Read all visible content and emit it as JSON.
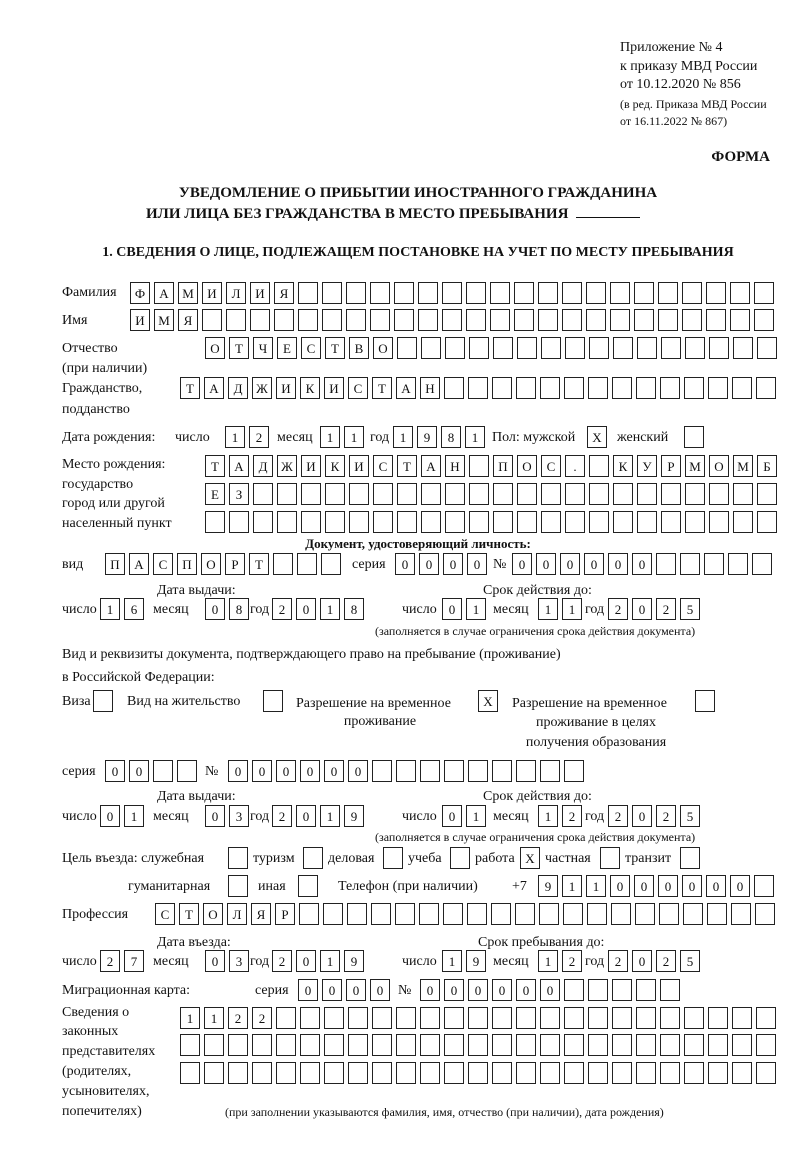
{
  "header": {
    "appendix": [
      "Приложение № 4",
      "к приказу МВД России",
      "от 10.12.2020 № 856"
    ],
    "revision": [
      "(в ред. Приказа МВД России",
      "от 16.11.2022 № 867)"
    ],
    "form_label": "ФОРМА",
    "title_line1": "УВЕДОМЛЕНИЕ О ПРИБЫТИИ ИНОСТРАННОГО ГРАЖДАНИНА",
    "title_line2": "ИЛИ ЛИЦА БЕЗ ГРАЖДАНСТВА В МЕСТО ПРЕБЫВАНИЯ",
    "section_title": "1. СВЕДЕНИЯ О ЛИЦЕ, ПОДЛЕЖАЩЕМ ПОСТАНОВКЕ НА УЧЕТ ПО МЕСТУ ПРЕБЫВАНИЯ"
  },
  "person": {
    "surname_label": "Фамилия",
    "surname": [
      "Ф",
      "А",
      "М",
      "И",
      "Л",
      "И",
      "Я",
      "",
      "",
      "",
      "",
      "",
      "",
      "",
      "",
      "",
      "",
      "",
      "",
      "",
      "",
      "",
      "",
      "",
      "",
      "",
      ""
    ],
    "name_label": "Имя",
    "name": [
      "И",
      "М",
      "Я",
      "",
      "",
      "",
      "",
      "",
      "",
      "",
      "",
      "",
      "",
      "",
      "",
      "",
      "",
      "",
      "",
      "",
      "",
      "",
      "",
      "",
      "",
      "",
      ""
    ],
    "patronymic_label": [
      "Отчество",
      "(при наличии)"
    ],
    "patronymic": [
      "О",
      "Т",
      "Ч",
      "Е",
      "С",
      "Т",
      "В",
      "О",
      "",
      "",
      "",
      "",
      "",
      "",
      "",
      "",
      "",
      "",
      "",
      "",
      "",
      "",
      "",
      ""
    ],
    "citizenship_label": [
      "Гражданство,",
      "подданство"
    ],
    "citizenship": [
      "Т",
      "А",
      "Д",
      "Ж",
      "И",
      "К",
      "И",
      "С",
      "Т",
      "А",
      "Н",
      "",
      "",
      "",
      "",
      "",
      "",
      "",
      "",
      "",
      "",
      "",
      "",
      "",
      ""
    ],
    "birth": {
      "label": "Дата рождения:",
      "day_label": "число",
      "day": [
        "1",
        "2"
      ],
      "month_label": "месяц",
      "month": [
        "1",
        "1"
      ],
      "year_label": "год",
      "year": [
        "1",
        "9",
        "8",
        "1"
      ],
      "sex_male_label": "Пол: мужской",
      "male": [
        "X"
      ],
      "sex_female_label": "женский",
      "female": [
        ""
      ]
    },
    "birthplace_label": [
      "Место рождения:",
      "государство",
      "город или другой",
      "населенный пункт"
    ],
    "birthplace_row1": [
      "Т",
      "А",
      "Д",
      "Ж",
      "И",
      "К",
      "И",
      "С",
      "Т",
      "А",
      "Н",
      "",
      "П",
      "О",
      "С",
      ".",
      "",
      "К",
      "У",
      "Р",
      "М",
      "О",
      "М",
      "Б"
    ],
    "birthplace_row2": [
      "Е",
      "З",
      "",
      "",
      "",
      "",
      "",
      "",
      "",
      "",
      "",
      "",
      "",
      "",
      "",
      "",
      "",
      "",
      "",
      "",
      "",
      "",
      "",
      ""
    ],
    "birthplace_row3": [
      "",
      "",
      "",
      "",
      "",
      "",
      "",
      "",
      "",
      "",
      "",
      "",
      "",
      "",
      "",
      "",
      "",
      "",
      "",
      "",
      "",
      "",
      "",
      ""
    ]
  },
  "id_document": {
    "heading": "Документ, удостоверяющий личность:",
    "type_label": "вид",
    "type": [
      "П",
      "А",
      "С",
      "П",
      "О",
      "Р",
      "Т",
      "",
      "",
      ""
    ],
    "series_label": "серия",
    "series": [
      "0",
      "0",
      "0",
      "0"
    ],
    "number_label": "№",
    "number": [
      "0",
      "0",
      "0",
      "0",
      "0",
      "0",
      "",
      "",
      "",
      "",
      ""
    ],
    "issue_label": "Дата выдачи:",
    "valid_label": "Срок действия до:",
    "issue": {
      "day_label": "число",
      "day": [
        "1",
        "6"
      ],
      "month_label": "месяц",
      "month": [
        "0",
        "8"
      ],
      "year_label": "год",
      "year": [
        "2",
        "0",
        "1",
        "8"
      ]
    },
    "valid": {
      "day_label": "число",
      "day": [
        "0",
        "1"
      ],
      "month_label": "месяц",
      "month": [
        "1",
        "1"
      ],
      "year_label": "год",
      "year": [
        "2",
        "0",
        "2",
        "5"
      ]
    },
    "note": "(заполняется в случае ограничения срока действия документа)"
  },
  "stay_document": {
    "heading_line1": "Вид и реквизиты документа, подтверждающего право на пребывание (проживание)",
    "heading_line2": "в Российской Федерации:",
    "visa_label": "Виза",
    "visa": [
      ""
    ],
    "residence_label": "Вид на жительство",
    "residence": [
      ""
    ],
    "temp_permit_label": [
      "Разрешение на временное",
      "проживание"
    ],
    "temp_permit": [
      "X"
    ],
    "edu_permit_label": [
      "Разрешение на временное",
      "проживание в целях",
      "получения образования"
    ],
    "edu_permit": [
      ""
    ],
    "series_label": "серия",
    "series": [
      "0",
      "0",
      "",
      ""
    ],
    "number_label": "№",
    "number": [
      "0",
      "0",
      "0",
      "0",
      "0",
      "0",
      "",
      "",
      "",
      "",
      "",
      "",
      "",
      "",
      ""
    ],
    "issue_label": "Дата выдачи:",
    "valid_label": "Срок действия до:",
    "issue": {
      "day_label": "число",
      "day": [
        "0",
        "1"
      ],
      "month_label": "месяц",
      "month": [
        "0",
        "3"
      ],
      "year_label": "год",
      "year": [
        "2",
        "0",
        "1",
        "9"
      ]
    },
    "valid": {
      "day_label": "число",
      "day": [
        "0",
        "1"
      ],
      "month_label": "месяц",
      "month": [
        "1",
        "2"
      ],
      "year_label": "год",
      "year": [
        "2",
        "0",
        "2",
        "5"
      ]
    },
    "note": "(заполняется в случае ограничения срока действия документа)"
  },
  "purpose": {
    "label": "Цель въезда: служебная",
    "official": [
      ""
    ],
    "tourism_label": "туризм",
    "tourism": [
      ""
    ],
    "business_label": "деловая",
    "business": [
      ""
    ],
    "study_label": "учеба",
    "study": [
      ""
    ],
    "work_label": "работа",
    "work": [
      "X"
    ],
    "private_label": "частная",
    "private": [
      ""
    ],
    "transit_label": "транзит",
    "transit": [
      ""
    ],
    "humanitarian_label": "гуманитарная",
    "humanitarian": [
      ""
    ],
    "other_label": "иная",
    "other": [
      ""
    ]
  },
  "phone": {
    "label": "Телефон (при наличии)",
    "prefix": "+7",
    "digits": [
      "9",
      "1",
      "1",
      "0",
      "0",
      "0",
      "0",
      "0",
      "0",
      ""
    ]
  },
  "profession": {
    "label": "Профессия",
    "value": [
      "С",
      "Т",
      "О",
      "Л",
      "Я",
      "Р",
      "",
      "",
      "",
      "",
      "",
      "",
      "",
      "",
      "",
      "",
      "",
      "",
      "",
      "",
      "",
      "",
      "",
      "",
      "",
      ""
    ]
  },
  "entry": {
    "entry_label": "Дата въезда:",
    "stay_until_label": "Срок пребывания до:",
    "entry_date": {
      "day_label": "число",
      "day": [
        "2",
        "7"
      ],
      "month_label": "месяц",
      "month": [
        "0",
        "3"
      ],
      "year_label": "год",
      "year": [
        "2",
        "0",
        "1",
        "9"
      ]
    },
    "stay_until": {
      "day_label": "число",
      "day": [
        "1",
        "9"
      ],
      "month_label": "месяц",
      "month": [
        "1",
        "2"
      ],
      "year_label": "год",
      "year": [
        "2",
        "0",
        "2",
        "5"
      ]
    }
  },
  "migration_card": {
    "label": "Миграционная карта:",
    "series_label": "серия",
    "series": [
      "0",
      "0",
      "0",
      "0"
    ],
    "number_label": "№",
    "number": [
      "0",
      "0",
      "0",
      "0",
      "0",
      "0",
      "",
      "",
      "",
      "",
      ""
    ]
  },
  "representatives": {
    "label": [
      "Сведения о",
      "законных",
      "представителях",
      "(родителях,",
      "усыновителях,",
      "попечителях)"
    ],
    "row1": [
      "1",
      "1",
      "2",
      "2",
      "",
      "",
      "",
      "",
      "",
      "",
      "",
      "",
      "",
      "",
      "",
      "",
      "",
      "",
      "",
      "",
      "",
      "",
      "",
      "",
      ""
    ],
    "row2": [
      "",
      "",
      "",
      "",
      "",
      "",
      "",
      "",
      "",
      "",
      "",
      "",
      "",
      "",
      "",
      "",
      "",
      "",
      "",
      "",
      "",
      "",
      "",
      "",
      ""
    ],
    "row3": [
      "",
      "",
      "",
      "",
      "",
      "",
      "",
      "",
      "",
      "",
      "",
      "",
      "",
      "",
      "",
      "",
      "",
      "",
      "",
      "",
      "",
      "",
      "",
      "",
      ""
    ],
    "note": "(при заполнении указываются фамилия, имя, отчество (при наличии), дата рождения)"
  }
}
